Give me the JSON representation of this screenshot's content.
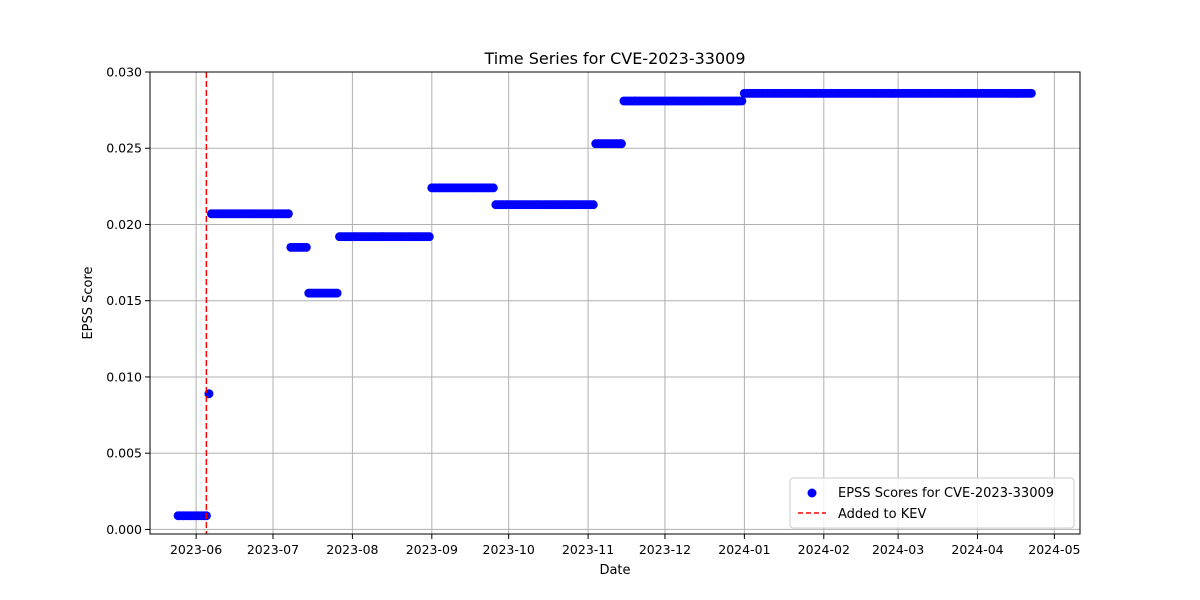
{
  "chart_data": {
    "type": "scatter",
    "title": "Time Series for CVE-2023-33009",
    "xlabel": "Date",
    "ylabel": "EPSS Score",
    "xlim": [
      "2023-05-14",
      "2024-05-11"
    ],
    "ylim": [
      -0.0003,
      0.03
    ],
    "x_ticks": [
      "2023-06-01",
      "2023-07-01",
      "2023-08-01",
      "2023-09-01",
      "2023-10-01",
      "2023-11-01",
      "2023-12-01",
      "2024-01-01",
      "2024-02-01",
      "2024-03-01",
      "2024-04-01",
      "2024-05-01"
    ],
    "x_tick_labels": [
      "2023-06",
      "2023-07",
      "2023-08",
      "2023-09",
      "2023-10",
      "2023-11",
      "2023-12",
      "2024-01",
      "2024-02",
      "2024-03",
      "2024-04",
      "2024-05"
    ],
    "y_ticks": [
      0.0,
      0.005,
      0.01,
      0.015,
      0.02,
      0.025,
      0.03
    ],
    "y_tick_labels": [
      "0.000",
      "0.005",
      "0.010",
      "0.015",
      "0.020",
      "0.025",
      "0.030"
    ],
    "grid": true,
    "legend_position": "lower right",
    "series": [
      {
        "name": "EPSS Scores for CVE-2023-33009",
        "color": "#0000ff",
        "marker": "circle",
        "segments": [
          {
            "start": "2023-05-25",
            "end": "2023-06-05",
            "value": 0.0009
          },
          {
            "start": "2023-06-06",
            "end": "2023-06-06",
            "value": 0.0089
          },
          {
            "start": "2023-06-07",
            "end": "2023-07-07",
            "value": 0.0207
          },
          {
            "start": "2023-07-08",
            "end": "2023-07-14",
            "value": 0.0185
          },
          {
            "start": "2023-07-15",
            "end": "2023-07-26",
            "value": 0.0155
          },
          {
            "start": "2023-07-27",
            "end": "2023-08-31",
            "value": 0.0192
          },
          {
            "start": "2023-09-01",
            "end": "2023-09-25",
            "value": 0.0224
          },
          {
            "start": "2023-09-26",
            "end": "2023-11-03",
            "value": 0.0213
          },
          {
            "start": "2023-11-04",
            "end": "2023-11-14",
            "value": 0.0253
          },
          {
            "start": "2023-11-15",
            "end": "2023-12-31",
            "value": 0.0281
          },
          {
            "start": "2024-01-01",
            "end": "2024-04-22",
            "value": 0.0286
          }
        ]
      }
    ],
    "annotations": [
      {
        "type": "vline",
        "x": "2023-06-05",
        "label": "Added to KEV",
        "color": "#ff0000",
        "style": "dashed"
      }
    ]
  }
}
